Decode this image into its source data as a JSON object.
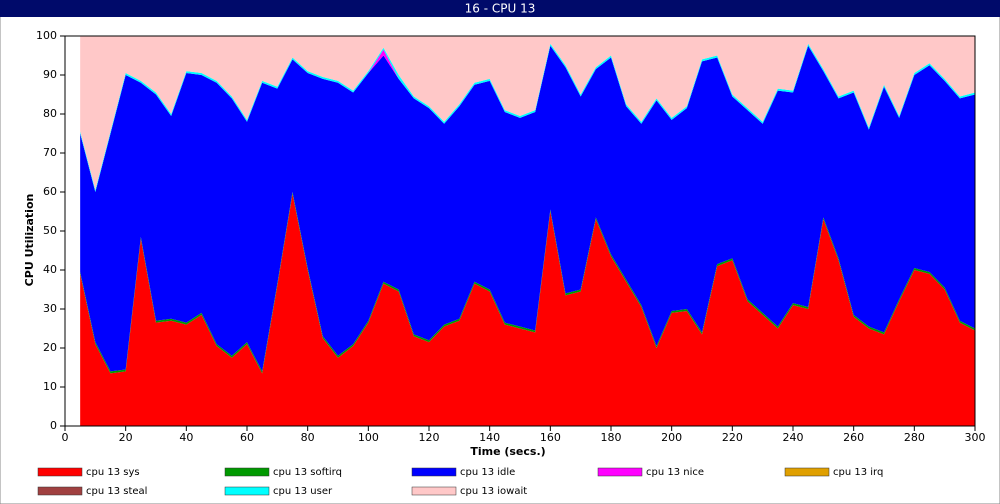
{
  "chart_data": {
    "type": "stacked_area",
    "title": "16 - CPU 13",
    "xlabel": "Time (secs.)",
    "ylabel": "CPU Utilization",
    "x": [
      5,
      10,
      15,
      20,
      25,
      30,
      35,
      40,
      45,
      50,
      55,
      60,
      65,
      70,
      75,
      80,
      85,
      90,
      95,
      100,
      105,
      110,
      115,
      120,
      125,
      130,
      135,
      140,
      145,
      150,
      155,
      160,
      165,
      170,
      175,
      180,
      185,
      190,
      195,
      200,
      205,
      210,
      215,
      220,
      225,
      230,
      235,
      240,
      245,
      250,
      255,
      260,
      265,
      270,
      275,
      280,
      285,
      290,
      295,
      300
    ],
    "xlim": [
      0,
      300
    ],
    "xticks": [
      0,
      20,
      40,
      60,
      80,
      100,
      120,
      140,
      160,
      180,
      200,
      220,
      240,
      260,
      280,
      300
    ],
    "ylim": [
      0,
      100
    ],
    "yticks": [
      0,
      10,
      20,
      30,
      40,
      50,
      60,
      70,
      80,
      90,
      100
    ],
    "series": [
      {
        "name": "cpu 13 sys",
        "color": "#ff0000",
        "values": [
          39,
          21,
          13.5,
          14,
          48,
          26.5,
          27,
          26,
          28.5,
          20.5,
          17.5,
          21,
          13.5,
          36,
          59.5,
          40,
          22.5,
          17.5,
          20.5,
          26.5,
          36.5,
          34.5,
          23,
          21.5,
          25.5,
          27,
          36.5,
          34.5,
          26,
          25,
          24,
          55,
          33.5,
          34.5,
          53,
          43.5,
          37,
          30.5,
          20,
          29,
          29.5,
          23.5,
          41,
          42.5,
          32,
          28.5,
          25,
          31,
          30,
          53,
          42.5,
          28,
          25,
          23.5,
          32,
          40,
          39,
          35,
          26.5,
          24.5
        ]
      },
      {
        "name": "cpu 13 softirq",
        "color": "#009900",
        "values": [
          0.5,
          0.5,
          0.5,
          0.5,
          0.5,
          0.5,
          0.5,
          0.5,
          0.5,
          0.5,
          0.5,
          0.5,
          0.5,
          0.5,
          0.5,
          0.5,
          0.5,
          0.5,
          0.5,
          0.5,
          0.5,
          0.5,
          0.5,
          0.5,
          0.5,
          0.5,
          0.5,
          0.5,
          0.5,
          0.5,
          0.5,
          0.5,
          0.5,
          0.5,
          0.5,
          0.5,
          0.5,
          0.5,
          0.5,
          0.5,
          0.5,
          0.5,
          0.5,
          0.5,
          0.5,
          0.5,
          0.5,
          0.5,
          0.5,
          0.5,
          0.5,
          0.5,
          0.5,
          0.5,
          0.5,
          0.5,
          0.5,
          0.5,
          0.5,
          0.5
        ]
      },
      {
        "name": "cpu 13 idle",
        "color": "#0000ff",
        "values": [
          35.5,
          38.5,
          61,
          75.5,
          39.5,
          58,
          52,
          64,
          61,
          67,
          66,
          56.5,
          74,
          50,
          34,
          50,
          66,
          70,
          64.5,
          63.5,
          58,
          54,
          60.5,
          59.5,
          51.5,
          54.5,
          50.5,
          53.5,
          54,
          53.5,
          56,
          42,
          58,
          49.5,
          38,
          50.5,
          44.5,
          46.5,
          63,
          49,
          51.5,
          69.5,
          53,
          41.5,
          48.5,
          48.5,
          60.5,
          54,
          67,
          37.5,
          41,
          57,
          50.5,
          63,
          46.5,
          49.5,
          53,
          53,
          57,
          60
        ]
      },
      {
        "name": "cpu 13 nice",
        "color": "#ff00ff",
        "values": [
          0,
          0,
          0,
          0,
          0,
          0,
          0,
          0,
          0,
          0,
          0,
          0,
          0,
          0,
          0,
          0,
          0,
          0,
          0,
          0,
          1.5,
          0,
          0,
          0,
          0,
          0,
          0,
          0,
          0,
          0,
          0,
          0,
          0,
          0,
          0,
          0,
          0,
          0,
          0,
          0,
          0,
          0,
          0,
          0,
          0,
          0,
          0,
          0,
          0,
          0,
          0,
          0,
          0,
          0,
          0,
          0,
          0,
          0,
          0,
          0
        ]
      },
      {
        "name": "cpu 13 irq",
        "color": "#e0a000",
        "values": [
          0,
          0,
          0,
          0,
          0,
          0,
          0,
          0,
          0,
          0,
          0,
          0,
          0,
          0,
          0,
          0,
          0,
          0,
          0,
          0,
          0,
          0,
          0,
          0,
          0,
          0,
          0,
          0,
          0,
          0,
          0,
          0,
          0,
          0,
          0,
          0,
          0,
          0,
          0,
          0,
          0,
          0,
          0,
          0,
          0,
          0,
          0,
          0,
          0,
          0,
          0,
          0,
          0,
          0,
          0,
          0,
          0,
          0,
          0,
          0
        ]
      },
      {
        "name": "cpu 13 steal",
        "color": "#a04040",
        "values": [
          0,
          0,
          0,
          0,
          0,
          0,
          0,
          0,
          0,
          0,
          0,
          0,
          0,
          0,
          0,
          0,
          0,
          0,
          0,
          0,
          0,
          0,
          0,
          0,
          0,
          0,
          0,
          0,
          0,
          0,
          0,
          0,
          0,
          0,
          0,
          0,
          0,
          0,
          0,
          0,
          0,
          0,
          0,
          0,
          0,
          0,
          0,
          0,
          0,
          0,
          0,
          0,
          0,
          0,
          0,
          0,
          0,
          0,
          0,
          0
        ]
      },
      {
        "name": "cpu 13 user",
        "color": "#00ffff",
        "values": [
          0.5,
          0.5,
          0.5,
          0.5,
          0.5,
          0.5,
          0.5,
          0.5,
          0.5,
          0.5,
          0.5,
          0.5,
          0.5,
          0.5,
          0.5,
          0.5,
          0.5,
          0.5,
          0.5,
          0.5,
          0.5,
          1,
          0.5,
          0.5,
          0.5,
          0.5,
          0.5,
          0.5,
          0.5,
          0.5,
          0.5,
          0.5,
          0.5,
          0.5,
          0.5,
          0.5,
          0.5,
          0.5,
          0.5,
          0.5,
          0.5,
          0.5,
          0.5,
          0.5,
          0.5,
          0.5,
          0.5,
          0.5,
          0.5,
          0.5,
          0.5,
          0.5,
          0.5,
          0.5,
          0.5,
          0.5,
          0.5,
          0.5,
          0.5,
          0.5
        ]
      },
      {
        "name": "cpu 13 iowait",
        "color": "#ffc8c8",
        "values": [
          24.5,
          39.5,
          24.5,
          9.5,
          11.5,
          14.5,
          20,
          9,
          9.5,
          11.5,
          15.5,
          21.5,
          11.5,
          13,
          5.5,
          9,
          10.5,
          11.5,
          14,
          9,
          3,
          10,
          15.5,
          18,
          22,
          17.5,
          12,
          11,
          19,
          20.5,
          19,
          2,
          7.5,
          15,
          8,
          5,
          17.5,
          22,
          16,
          21,
          18,
          6,
          5,
          15,
          18.5,
          22,
          13.5,
          14,
          2,
          8.5,
          15.5,
          14,
          23.5,
          12.5,
          20.5,
          9.5,
          7,
          11,
          15.5,
          14.5
        ]
      }
    ]
  }
}
